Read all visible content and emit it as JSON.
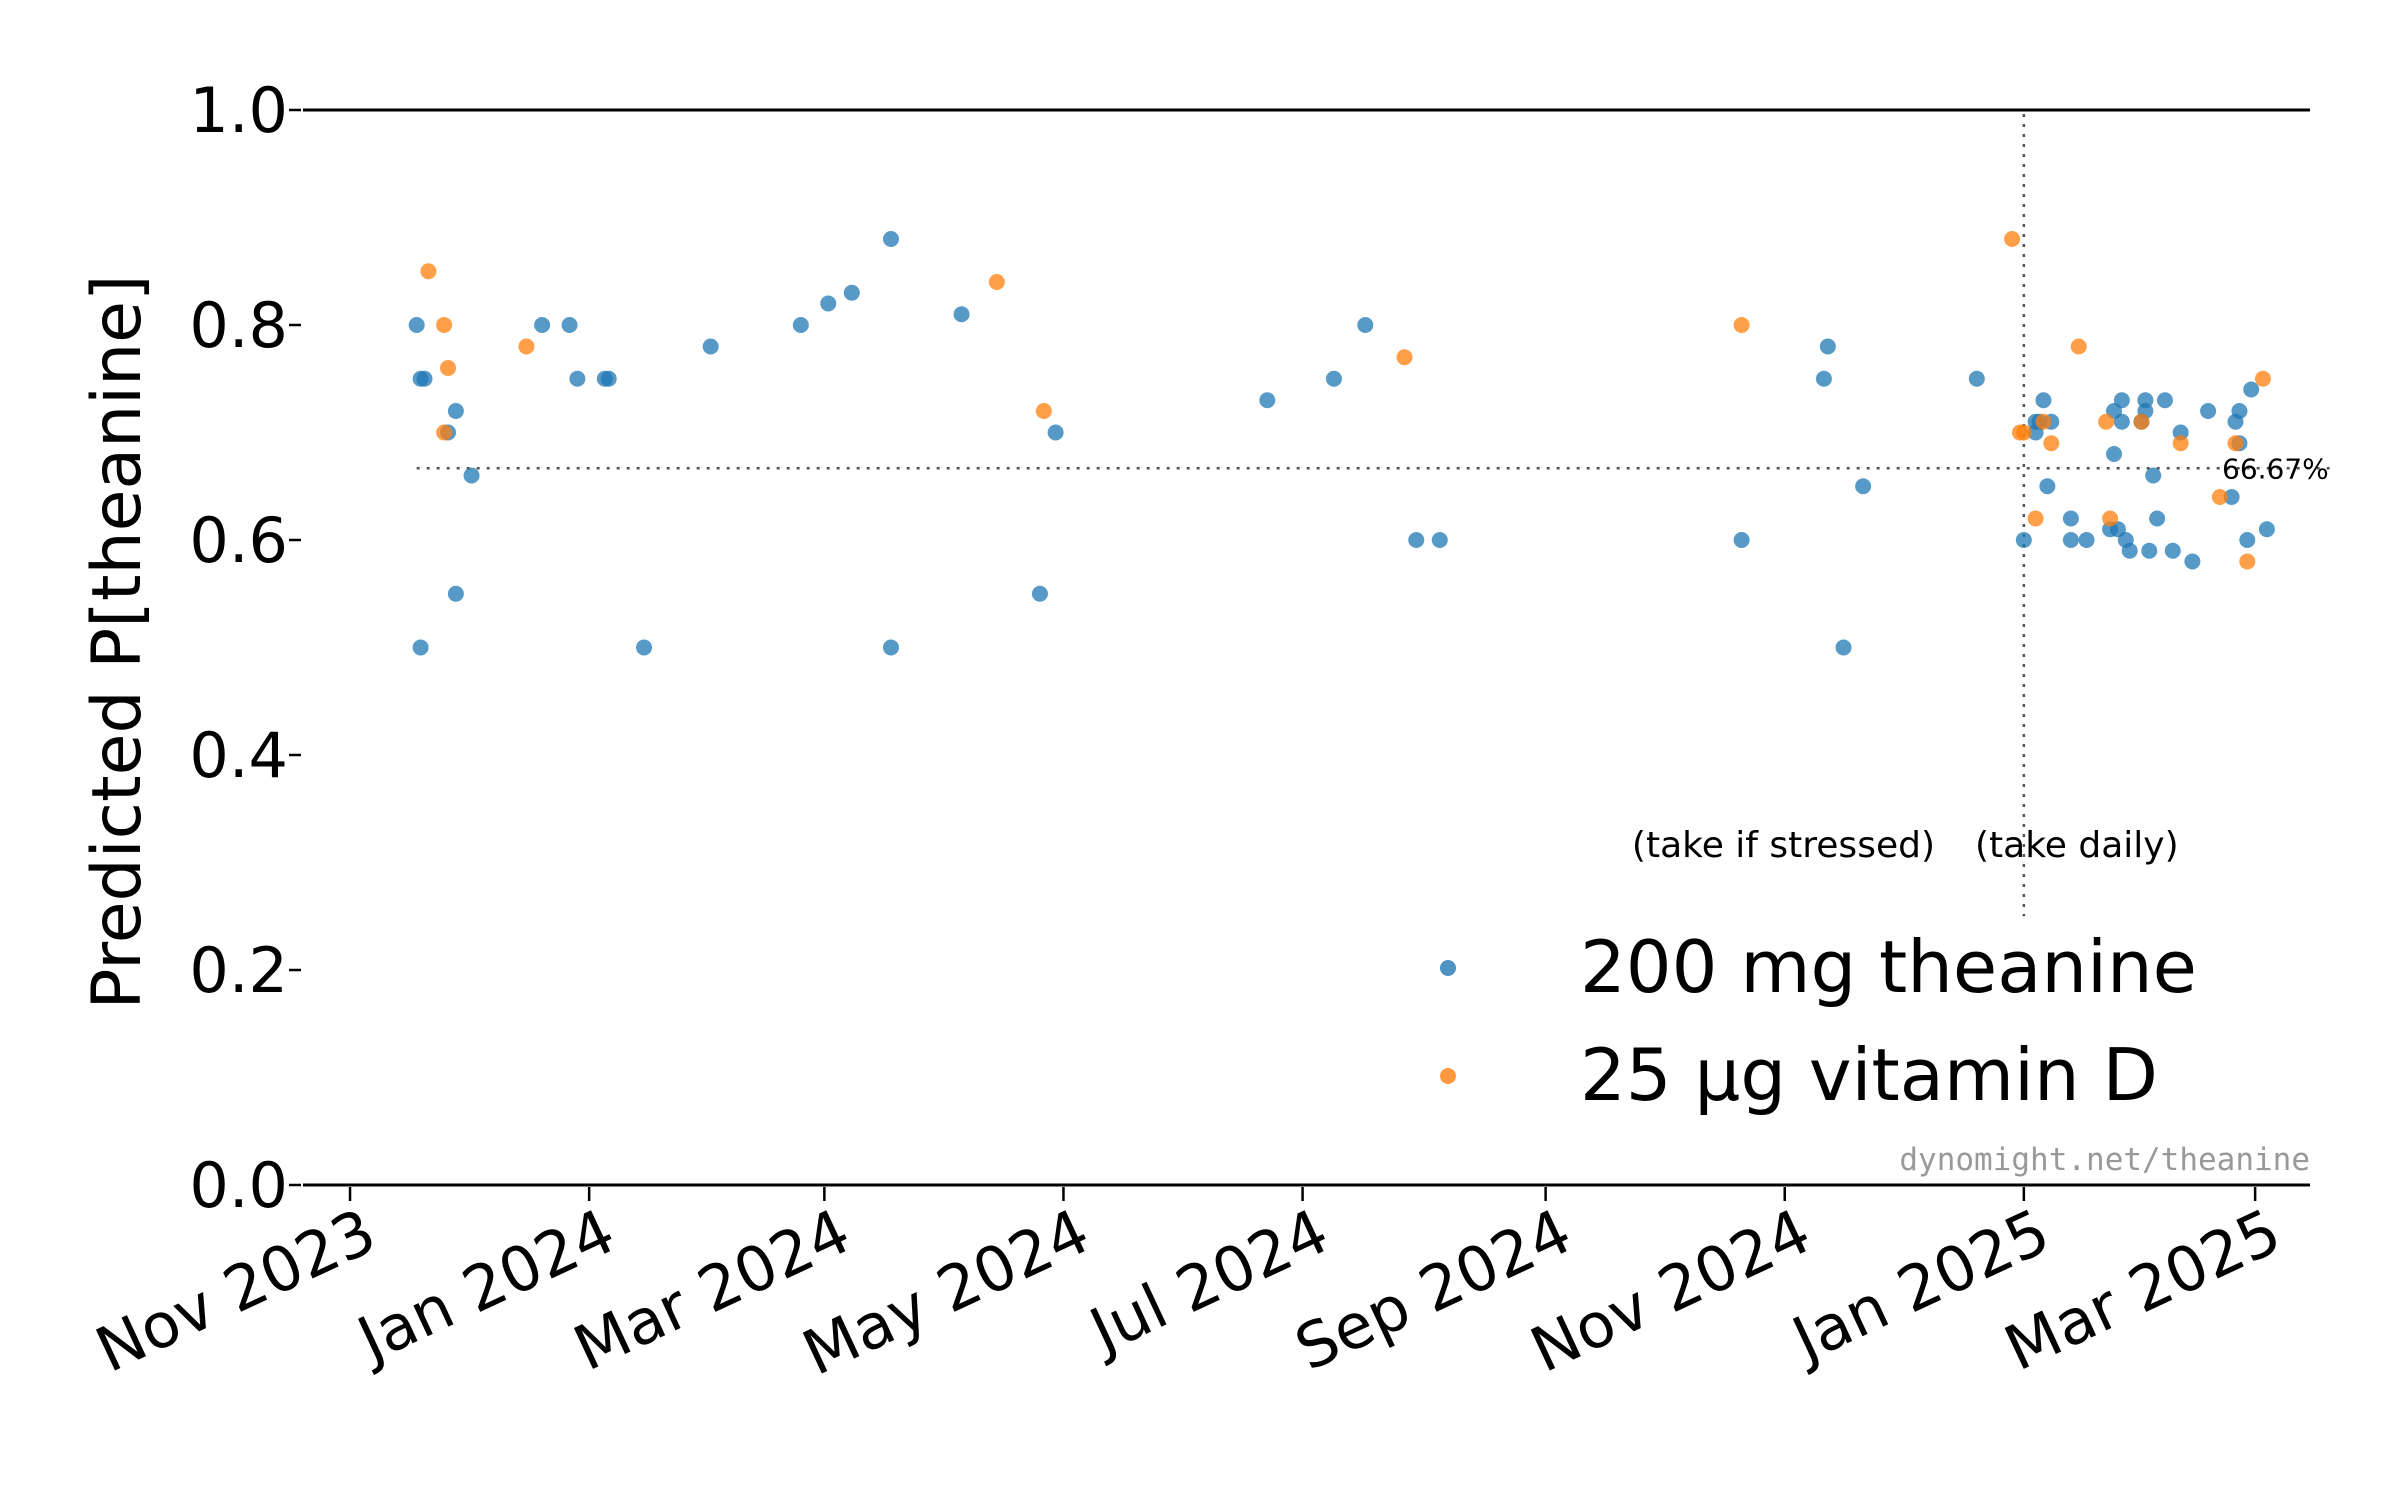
{
  "chart_data": {
    "type": "scatter",
    "ylabel": "Predicted P[theanine]",
    "xlabel": "",
    "title": "",
    "ylim": [
      0.0,
      1.0
    ],
    "xlim": [
      "2023-10-20",
      "2025-03-15"
    ],
    "yticks": [
      "0.0",
      "0.2",
      "0.4",
      "0.6",
      "0.8",
      "1.0"
    ],
    "xticks": [
      {
        "date": "2023-11-01",
        "label": "Nov 2023"
      },
      {
        "date": "2024-01-01",
        "label": "Jan 2024"
      },
      {
        "date": "2024-03-01",
        "label": "Mar 2024"
      },
      {
        "date": "2024-05-01",
        "label": "May 2024"
      },
      {
        "date": "2024-07-01",
        "label": "Jul 2024"
      },
      {
        "date": "2024-09-01",
        "label": "Sep 2024"
      },
      {
        "date": "2024-11-01",
        "label": "Nov 2024"
      },
      {
        "date": "2025-01-01",
        "label": "Jan 2025"
      },
      {
        "date": "2025-03-01",
        "label": "Mar 2025"
      }
    ],
    "grid": false,
    "legend_position": "lower-right",
    "reference_line_y": {
      "value": 0.6667,
      "label": "66.67%"
    },
    "reference_line_x": {
      "date": "2025-01-01"
    },
    "annotations": {
      "left": "(take if stressed)",
      "right": "(take daily)"
    },
    "credit": "dynomight.net/theanine",
    "series": [
      {
        "name": "200 mg theanine",
        "color": "#1f77b4",
        "points": [
          [
            "2023-11-18",
            0.8
          ],
          [
            "2023-11-19",
            0.75
          ],
          [
            "2023-11-20",
            0.75
          ],
          [
            "2023-11-19",
            0.5
          ],
          [
            "2023-11-26",
            0.7
          ],
          [
            "2023-11-28",
            0.72
          ],
          [
            "2023-11-28",
            0.55
          ],
          [
            "2023-12-02",
            0.66
          ],
          [
            "2023-12-20",
            0.8
          ],
          [
            "2023-12-27",
            0.8
          ],
          [
            "2023-12-29",
            0.75
          ],
          [
            "2024-01-05",
            0.75
          ],
          [
            "2024-01-06",
            0.75
          ],
          [
            "2024-01-15",
            0.5
          ],
          [
            "2024-02-01",
            0.78
          ],
          [
            "2024-02-24",
            0.8
          ],
          [
            "2024-03-02",
            0.82
          ],
          [
            "2024-03-08",
            0.83
          ],
          [
            "2024-03-18",
            0.88
          ],
          [
            "2024-03-18",
            0.5
          ],
          [
            "2024-04-05",
            0.81
          ],
          [
            "2024-04-25",
            0.55
          ],
          [
            "2024-04-29",
            0.7
          ],
          [
            "2024-06-22",
            0.73
          ],
          [
            "2024-07-09",
            0.75
          ],
          [
            "2024-07-17",
            0.8
          ],
          [
            "2024-07-30",
            0.6
          ],
          [
            "2024-08-05",
            0.6
          ],
          [
            "2024-10-21",
            0.6
          ],
          [
            "2024-11-11",
            0.75
          ],
          [
            "2024-11-12",
            0.78
          ],
          [
            "2024-11-16",
            0.5
          ],
          [
            "2024-11-21",
            0.65
          ],
          [
            "2024-12-20",
            0.75
          ],
          [
            "2025-01-01",
            0.6
          ],
          [
            "2025-01-04",
            0.7
          ],
          [
            "2025-01-04",
            0.71
          ],
          [
            "2025-01-05",
            0.71
          ],
          [
            "2025-01-06",
            0.73
          ],
          [
            "2025-01-07",
            0.65
          ],
          [
            "2025-01-08",
            0.71
          ],
          [
            "2025-01-13",
            0.62
          ],
          [
            "2025-01-13",
            0.6
          ],
          [
            "2025-01-17",
            0.6
          ],
          [
            "2025-01-23",
            0.61
          ],
          [
            "2025-01-24",
            0.72
          ],
          [
            "2025-01-24",
            0.68
          ],
          [
            "2025-01-25",
            0.61
          ],
          [
            "2025-01-26",
            0.73
          ],
          [
            "2025-01-26",
            0.71
          ],
          [
            "2025-01-27",
            0.6
          ],
          [
            "2025-01-28",
            0.59
          ],
          [
            "2025-01-31",
            0.71
          ],
          [
            "2025-02-01",
            0.72
          ],
          [
            "2025-02-01",
            0.73
          ],
          [
            "2025-02-02",
            0.59
          ],
          [
            "2025-02-03",
            0.66
          ],
          [
            "2025-02-04",
            0.62
          ],
          [
            "2025-02-06",
            0.73
          ],
          [
            "2025-02-08",
            0.59
          ],
          [
            "2025-02-10",
            0.7
          ],
          [
            "2025-02-13",
            0.58
          ],
          [
            "2025-02-17",
            0.72
          ],
          [
            "2025-02-23",
            0.64
          ],
          [
            "2025-02-24",
            0.71
          ],
          [
            "2025-02-25",
            0.72
          ],
          [
            "2025-02-25",
            0.69
          ],
          [
            "2025-02-27",
            0.6
          ],
          [
            "2025-02-28",
            0.74
          ],
          [
            "2025-03-04",
            0.61
          ]
        ]
      },
      {
        "name": "25 µg vitamin D",
        "color": "#ff7f0e",
        "points": [
          [
            "2023-11-21",
            0.85
          ],
          [
            "2023-11-25",
            0.8
          ],
          [
            "2023-11-25",
            0.7
          ],
          [
            "2023-11-26",
            0.76
          ],
          [
            "2023-12-16",
            0.78
          ],
          [
            "2024-04-14",
            0.84
          ],
          [
            "2024-04-26",
            0.72
          ],
          [
            "2024-07-27",
            0.77
          ],
          [
            "2024-10-21",
            0.8
          ],
          [
            "2024-12-29",
            0.88
          ],
          [
            "2024-12-31",
            0.7
          ],
          [
            "2025-01-01",
            0.7
          ],
          [
            "2025-01-04",
            0.62
          ],
          [
            "2025-01-06",
            0.71
          ],
          [
            "2025-01-08",
            0.69
          ],
          [
            "2025-01-15",
            0.78
          ],
          [
            "2025-01-22",
            0.71
          ],
          [
            "2025-01-23",
            0.62
          ],
          [
            "2025-01-31",
            0.71
          ],
          [
            "2025-02-10",
            0.69
          ],
          [
            "2025-02-20",
            0.64
          ],
          [
            "2025-02-24",
            0.69
          ],
          [
            "2025-02-27",
            0.58
          ],
          [
            "2025-03-03",
            0.75
          ]
        ]
      }
    ]
  }
}
